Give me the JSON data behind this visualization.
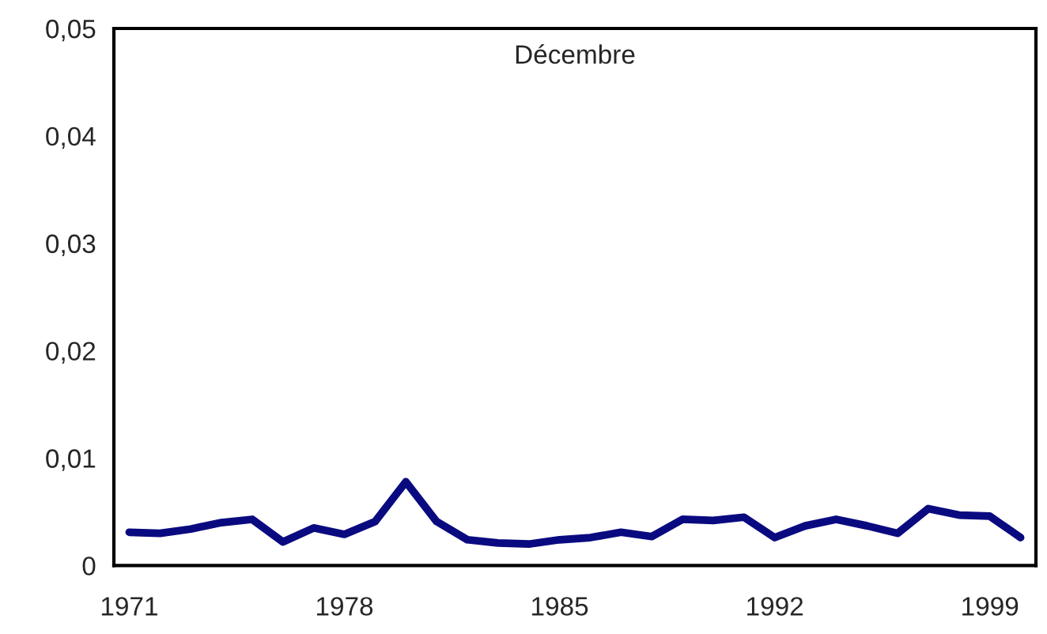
{
  "chart_data": {
    "type": "line",
    "title": "Décembre",
    "categories": [
      "1971",
      null,
      null,
      null,
      null,
      null,
      null,
      "1978",
      null,
      null,
      null,
      null,
      null,
      null,
      "1985",
      null,
      null,
      null,
      null,
      null,
      null,
      "1992",
      null,
      null,
      null,
      null,
      null,
      null,
      "1999",
      null
    ],
    "series": [
      {
        "color": "#0a0a80",
        "values": [
          0.0031,
          0.003,
          0.0034,
          0.004,
          0.0043,
          0.0022,
          0.0035,
          0.0029,
          0.0041,
          0.0078,
          0.0041,
          0.0024,
          0.0021,
          0.002,
          0.0024,
          0.0026,
          0.0031,
          0.0027,
          0.0043,
          0.0042,
          0.0045,
          0.0026,
          0.0037,
          0.0043,
          0.0037,
          0.003,
          0.0053,
          0.0047,
          0.0046,
          0.0026
        ]
      }
    ],
    "ylim": [
      0,
      0.05
    ],
    "yticks": [
      {
        "value": 0,
        "label": "0"
      },
      {
        "value": 0.01,
        "label": "0,01"
      },
      {
        "value": 0.02,
        "label": "0,02"
      },
      {
        "value": 0.03,
        "label": "0,03"
      },
      {
        "value": 0.04,
        "label": "0,04"
      },
      {
        "value": 0.05,
        "label": "0,05"
      }
    ],
    "grid": false,
    "legend": false,
    "marker": "none",
    "line_style": "solid"
  }
}
